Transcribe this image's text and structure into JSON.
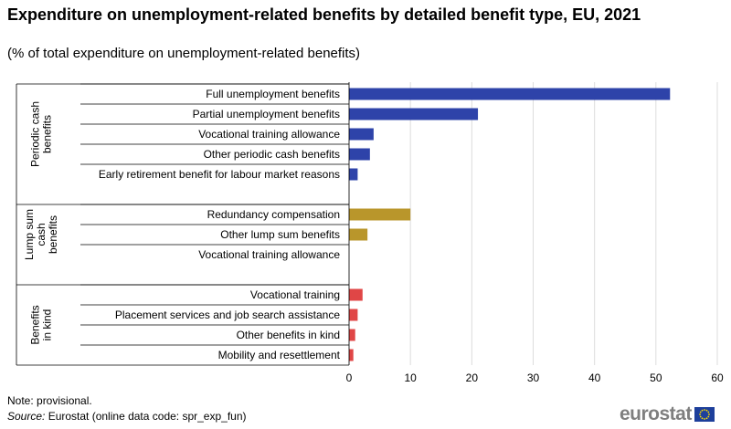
{
  "title": "Expenditure on unemployment-related benefits by detailed benefit type, EU, 2021",
  "subtitle": "(% of total expenditure on unemployment-related benefits)",
  "note": "Note: provisional.",
  "source_label": "Source:",
  "source_text": " Eurostat (online data code: spr_exp_fun)",
  "logo": {
    "text": "eurostat",
    "flag_icon": "eu-flag-icon"
  },
  "chart_data": {
    "type": "bar",
    "orientation": "horizontal",
    "xlim": [
      0,
      60
    ],
    "xticks": [
      "0",
      "10",
      "20",
      "30",
      "40",
      "50",
      "60"
    ],
    "grid": "vertical",
    "groups": [
      {
        "label_lines": [
          "Periodic cash",
          "benefits"
        ],
        "color": "#2e43a9",
        "categories": [
          "Full unemployment benefits",
          "Partial unemployment benefits",
          "Vocational training allowance",
          "Other periodic cash benefits",
          "Early retirement benefit for labour market reasons"
        ],
        "values": [
          52.3,
          21.0,
          4.0,
          3.4,
          1.4
        ]
      },
      {
        "label_lines": [
          "Lump sum",
          "cash",
          "benefits"
        ],
        "color": "#b9962b",
        "categories": [
          "Redundancy compensation",
          "Other lump sum benefits",
          "Vocational training allowance"
        ],
        "values": [
          10.0,
          3.0,
          0.0
        ]
      },
      {
        "label_lines": [
          "Benefits",
          "in kind"
        ],
        "color": "#e04646",
        "categories": [
          "Vocational training",
          "Placement services and job search assistance",
          "Other benefits in kind",
          "Mobility and resettlement"
        ],
        "values": [
          2.2,
          1.4,
          1.0,
          0.7
        ]
      }
    ]
  }
}
